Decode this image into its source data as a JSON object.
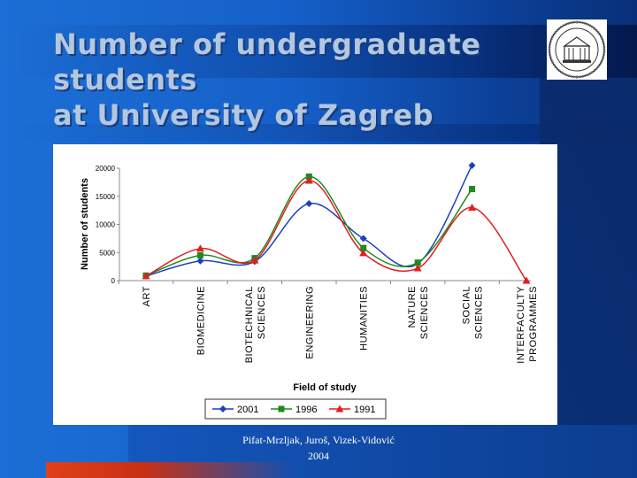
{
  "slide": {
    "title_lines": [
      "Number of undergraduate",
      "students",
      "at University of Zagreb"
    ],
    "citation_lines": [
      "Pifat-Mrzljak, Juroš, Vizek-Vidović",
      "2004"
    ]
  },
  "colors": {
    "series_2001": "#1f3fbf",
    "series_1996": "#1f8a1f",
    "series_1991": "#e01f1f"
  },
  "chart_data": {
    "type": "line",
    "xlabel": "Field of study",
    "ylabel": "Number of students",
    "ylim": [
      0,
      20000
    ],
    "yticks": [
      "0",
      "5000",
      "10000",
      "15000",
      "20000"
    ],
    "categories": [
      [
        "ART"
      ],
      [
        "BIOMEDICINE"
      ],
      [
        "BIOTECHNICAL",
        "SCIENCES"
      ],
      [
        "ENGINEERING"
      ],
      [
        "HUMANITIES"
      ],
      [
        "NATURE",
        "SCIENCES"
      ],
      [
        "SOCIAL",
        "SCIENCES"
      ],
      [
        "INTERFACULTY",
        "PROGRAMMES"
      ]
    ],
    "series": [
      {
        "name": "2001",
        "color": "#1f3fbf",
        "marker": "diamond",
        "values": [
          800,
          3500,
          3400,
          13700,
          7500,
          3000,
          20500,
          null
        ]
      },
      {
        "name": "1996",
        "color": "#1f8a1f",
        "marker": "square",
        "values": [
          900,
          4500,
          4000,
          18500,
          5800,
          3200,
          16300,
          null
        ]
      },
      {
        "name": "1991",
        "color": "#e01f1f",
        "marker": "triangle",
        "values": [
          800,
          5700,
          3600,
          17800,
          4900,
          2200,
          13000,
          0
        ]
      }
    ],
    "legend_position": "bottom-center",
    "grid": false
  }
}
